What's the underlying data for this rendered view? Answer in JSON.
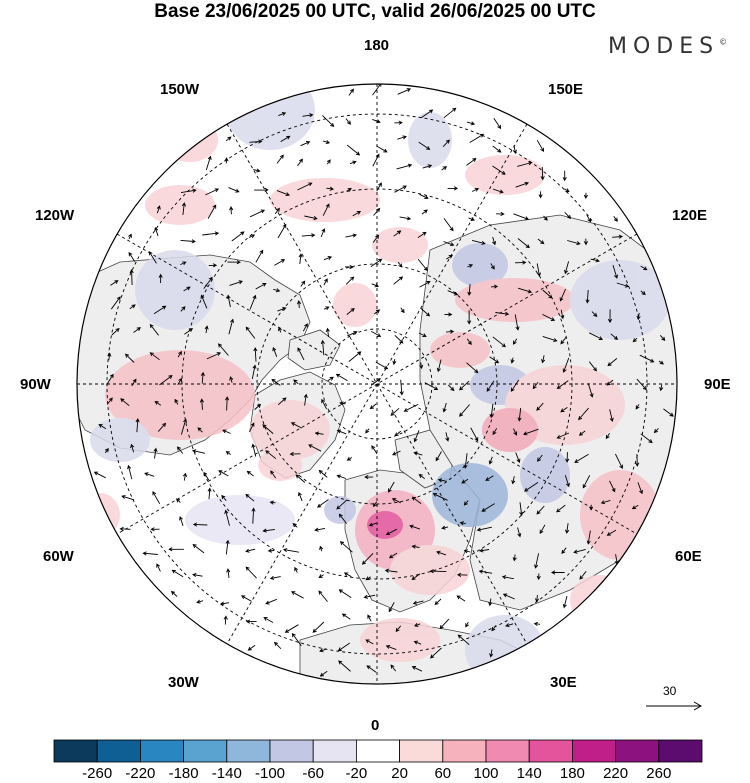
{
  "title": "Base 23/06/2025 00 UTC, valid 26/06/2025 00 UTC",
  "brand": "MODES",
  "brand_mark": "©",
  "longitude_labels": {
    "top": "180",
    "bottom": "0",
    "left": "90W",
    "right": "90E",
    "upper_left": "150W",
    "upper_right": "150E",
    "mid_left_upper": "120W",
    "mid_right_upper": "120E",
    "mid_left_lower": "60W",
    "mid_right_lower": "60E",
    "lower_left": "30W",
    "lower_right": "30E"
  },
  "vector_scale": {
    "label": "30"
  },
  "colorbar": {
    "ticks": [
      "-260",
      "-220",
      "-180",
      "-140",
      "-100",
      "-60",
      "-20",
      "20",
      "60",
      "100",
      "140",
      "180",
      "220",
      "260"
    ],
    "colors": [
      "#0b3a5c",
      "#0f5f95",
      "#2a86c0",
      "#5aa2cf",
      "#8fb6db",
      "#c2c8e4",
      "#e6e4f3",
      "#ffffff",
      "#fbdada",
      "#f6b3be",
      "#f08ab0",
      "#e4549c",
      "#c01f8a",
      "#8c127f",
      "#5b0c6e"
    ]
  },
  "anomaly_colors": {
    "positive": "#f8d3d6",
    "negative": "#d9dbec"
  },
  "land_color": "#eeeeee",
  "ocean_color": "#ffffff"
}
